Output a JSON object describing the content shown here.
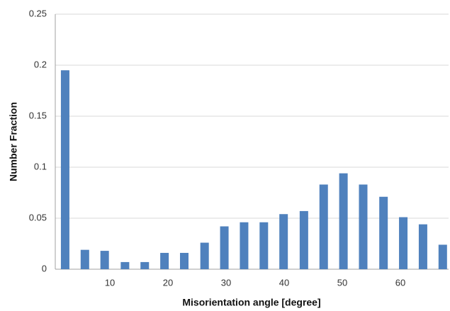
{
  "chart_data": {
    "type": "bar",
    "xlabel": "Misorientation angle [degree]",
    "ylabel": "Number Fraction",
    "x": [
      2.3,
      5.7,
      9.1,
      12.6,
      16.0,
      19.4,
      22.8,
      26.3,
      29.7,
      33.1,
      36.5,
      39.9,
      43.4,
      46.8,
      50.2,
      53.6,
      57.1,
      60.5,
      63.9,
      67.3
    ],
    "values": [
      0.195,
      0.019,
      0.018,
      0.007,
      0.007,
      0.016,
      0.016,
      0.026,
      0.042,
      0.046,
      0.046,
      0.054,
      0.057,
      0.083,
      0.094,
      0.083,
      0.071,
      0.051,
      0.044,
      0.024
    ],
    "color": "#4f81bd",
    "xlim": [
      0.6,
      68.3
    ],
    "xticks": [
      10,
      20,
      30,
      40,
      50,
      60
    ],
    "ylim": [
      0,
      0.25
    ],
    "yticks": [
      0,
      0.05,
      0.1,
      0.15,
      0.2,
      0.25
    ],
    "grid": true
  }
}
